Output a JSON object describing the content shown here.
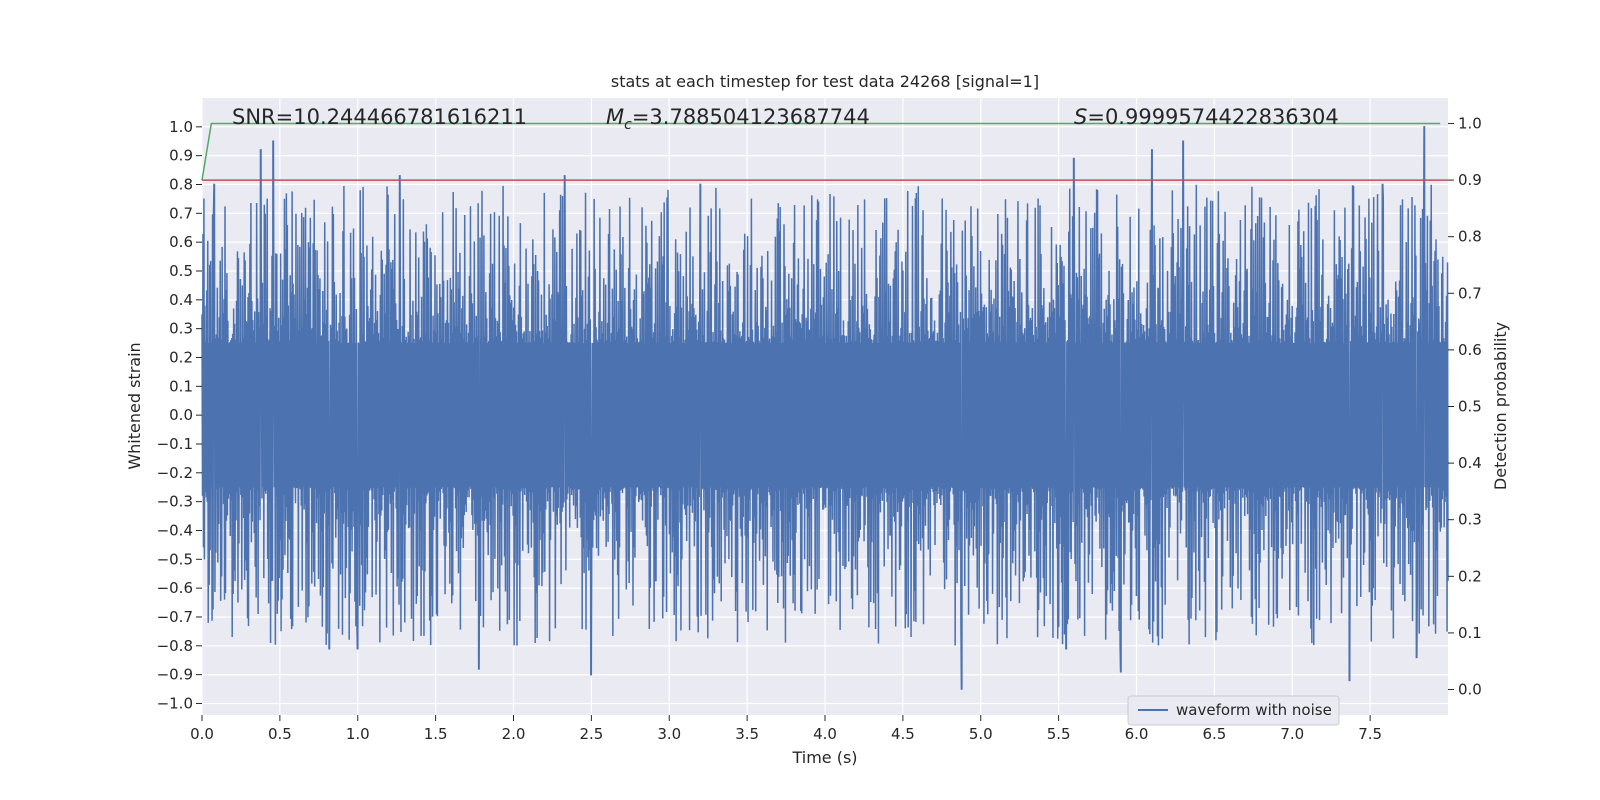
{
  "chart_data": {
    "type": "line",
    "title": "stats at each timestep for test data 24268 [signal=1]",
    "xlabel": "Time (s)",
    "ylabel": "Whitened strain",
    "y2label": "Detection probability",
    "xlim": [
      0.0,
      8.0
    ],
    "ylim": [
      -1.04,
      1.1
    ],
    "y2lim": [
      -0.045,
      1.045
    ],
    "xticks": [
      0.0,
      0.5,
      1.0,
      1.5,
      2.0,
      2.5,
      3.0,
      3.5,
      4.0,
      4.5,
      5.0,
      5.5,
      6.0,
      6.5,
      7.0,
      7.5
    ],
    "xtick_labels": [
      "0.0",
      "0.5",
      "1.0",
      "1.5",
      "2.0",
      "2.5",
      "3.0",
      "3.5",
      "4.0",
      "4.5",
      "5.0",
      "5.5",
      "6.0",
      "6.5",
      "7.0",
      "7.5"
    ],
    "yticks": [
      1.0,
      0.9,
      0.8,
      0.7,
      0.6,
      0.5,
      0.4,
      0.3,
      0.2,
      0.1,
      0.0,
      -0.1,
      -0.2,
      -0.3,
      -0.4,
      -0.5,
      -0.6,
      -0.7,
      -0.8,
      -0.9,
      -1.0
    ],
    "ytick_labels": [
      "1.0",
      "0.9",
      "0.8",
      "0.7",
      "0.6",
      "0.5",
      "0.4",
      "0.3",
      "0.2",
      "0.1",
      "0.0",
      "−0.1",
      "−0.2",
      "−0.3",
      "−0.4",
      "−0.5",
      "−0.6",
      "−0.7",
      "−0.8",
      "−0.9",
      "−1.0"
    ],
    "y2ticks": [
      1.0,
      0.9,
      0.8,
      0.7,
      0.6,
      0.5,
      0.4,
      0.3,
      0.2,
      0.1,
      0.0
    ],
    "y2tick_labels": [
      "1.0",
      "0.9",
      "0.8",
      "0.7",
      "0.6",
      "0.5",
      "0.4",
      "0.3",
      "0.2",
      "0.1",
      "0.0"
    ],
    "grid": true,
    "legend_position": "bottom-right",
    "annotations": {
      "snr": "SNR=10.244466781616211",
      "mc_symbol": "M",
      "mc_sub": "c",
      "mc_value": "=3.788504123687744",
      "s_symbol": "S",
      "s_value": "=0.9999574422836304"
    },
    "series": [
      {
        "name": "waveform with noise",
        "color": "#4c72b0",
        "axis": "left",
        "kind": "noise",
        "x_range": [
          0.0,
          8.0
        ],
        "peaks": [
          {
            "x": 0.38,
            "y": 0.92
          },
          {
            "x": 0.46,
            "y": 0.95
          },
          {
            "x": 0.08,
            "y": 0.8
          },
          {
            "x": 1.27,
            "y": 0.83
          },
          {
            "x": 2.33,
            "y": 0.83
          },
          {
            "x": 3.2,
            "y": 0.8
          },
          {
            "x": 5.6,
            "y": 0.89
          },
          {
            "x": 6.1,
            "y": 0.92
          },
          {
            "x": 6.3,
            "y": 0.95
          },
          {
            "x": 7.58,
            "y": 0.8
          },
          {
            "x": 7.85,
            "y": 1.0
          },
          {
            "x": 1.78,
            "y": -0.88
          },
          {
            "x": 2.5,
            "y": -0.9
          },
          {
            "x": 4.88,
            "y": -0.95
          },
          {
            "x": 5.9,
            "y": -0.89
          },
          {
            "x": 7.37,
            "y": -0.92
          },
          {
            "x": 7.8,
            "y": -0.84
          },
          {
            "x": 1.0,
            "y": -0.81
          },
          {
            "x": 0.82,
            "y": -0.81
          },
          {
            "x": 5.55,
            "y": -0.81
          }
        ]
      },
      {
        "name": "",
        "color": "#55a868",
        "axis": "right",
        "x": [
          0.0,
          0.06,
          7.95
        ],
        "y": [
          0.9,
          1.0,
          1.0
        ]
      },
      {
        "name": "",
        "color": "#c44e52",
        "axis": "right",
        "x": [
          0.0,
          8.0
        ],
        "y": [
          0.9,
          0.9
        ]
      }
    ]
  }
}
